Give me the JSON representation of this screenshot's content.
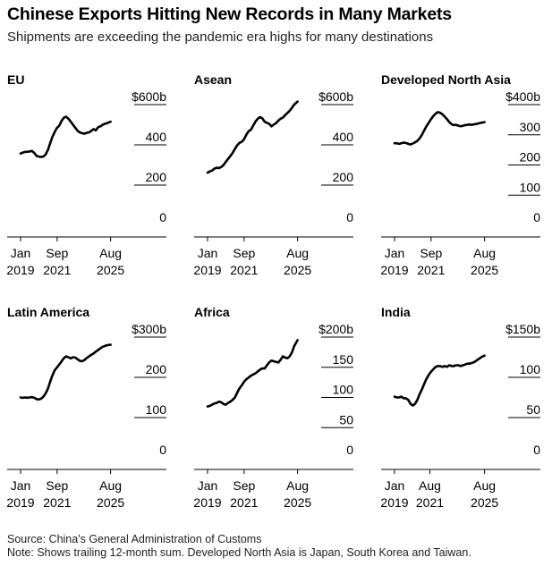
{
  "title": "Chinese Exports Hitting New Records in Many Markets",
  "subtitle": "Shipments are exceeding the pandemic era highs for many destinations",
  "footer": {
    "source": "Source: China's General Administration of Customs",
    "note": "Note: Shows trailing 12-month sum. Developed North Asia is Japan, South Korea and Taiwan."
  },
  "chart_data": [
    {
      "type": "line",
      "title": "EU",
      "unit": "b",
      "ylim": [
        0,
        600
      ],
      "yticks": [
        0,
        200,
        400,
        600
      ],
      "ytick_labels": [
        "0",
        "200",
        "400",
        "$600b"
      ],
      "xlim": [
        2019.0,
        2025.67
      ],
      "xticks": [
        {
          "x": 2019.0,
          "line1": "Jan",
          "line2": "2019"
        },
        {
          "x": 2021.67,
          "line1": "Sep",
          "line2": "2021"
        },
        {
          "x": 2025.58,
          "line1": "Aug",
          "line2": "2025"
        }
      ],
      "series": [
        {
          "x": [
            2019.0,
            2019.17,
            2019.33,
            2019.5,
            2019.67,
            2019.83,
            2020.0,
            2020.17,
            2020.33,
            2020.5,
            2020.67,
            2020.83,
            2021.0,
            2021.17,
            2021.33,
            2021.5,
            2021.67,
            2021.83,
            2022.0,
            2022.17,
            2022.33,
            2022.5,
            2022.67,
            2022.83,
            2023.0,
            2023.17,
            2023.33,
            2023.5,
            2023.67,
            2023.83,
            2024.0,
            2024.17,
            2024.33,
            2024.5,
            2024.67,
            2024.83,
            2025.0,
            2025.17,
            2025.33,
            2025.58
          ],
          "values": [
            357,
            362,
            365,
            366,
            367,
            370,
            360,
            345,
            342,
            340,
            342,
            352,
            375,
            410,
            440,
            465,
            485,
            495,
            520,
            535,
            540,
            530,
            515,
            500,
            485,
            470,
            462,
            458,
            455,
            460,
            462,
            470,
            478,
            472,
            488,
            492,
            500,
            505,
            508,
            515
          ]
        }
      ]
    },
    {
      "type": "line",
      "title": "Asean",
      "unit": "b",
      "ylim": [
        0,
        600
      ],
      "yticks": [
        0,
        200,
        400,
        600
      ],
      "ytick_labels": [
        "0",
        "200",
        "400",
        "$600b"
      ],
      "xlim": [
        2019.0,
        2025.67
      ],
      "xticks": [
        {
          "x": 2019.0,
          "line1": "Jan",
          "line2": "2019"
        },
        {
          "x": 2021.67,
          "line1": "Sep",
          "line2": "2021"
        },
        {
          "x": 2025.58,
          "line1": "Aug",
          "line2": "2025"
        }
      ],
      "series": [
        {
          "x": [
            2019.0,
            2019.17,
            2019.33,
            2019.5,
            2019.67,
            2019.83,
            2020.0,
            2020.17,
            2020.33,
            2020.5,
            2020.67,
            2020.83,
            2021.0,
            2021.17,
            2021.33,
            2021.5,
            2021.67,
            2021.83,
            2022.0,
            2022.17,
            2022.33,
            2022.5,
            2022.67,
            2022.83,
            2023.0,
            2023.17,
            2023.33,
            2023.5,
            2023.67,
            2023.83,
            2024.0,
            2024.17,
            2024.33,
            2024.5,
            2024.67,
            2024.83,
            2025.0,
            2025.17,
            2025.33,
            2025.58
          ],
          "values": [
            262,
            268,
            272,
            282,
            286,
            285,
            290,
            300,
            315,
            330,
            345,
            360,
            380,
            398,
            410,
            415,
            428,
            450,
            468,
            475,
            495,
            515,
            530,
            538,
            532,
            515,
            510,
            505,
            492,
            500,
            508,
            520,
            530,
            535,
            548,
            558,
            570,
            585,
            600,
            615
          ]
        }
      ]
    },
    {
      "type": "line",
      "title": "Developed North Asia",
      "unit": "b",
      "ylim": [
        0,
        400
      ],
      "yticks": [
        0,
        100,
        200,
        300,
        400
      ],
      "ytick_labels": [
        "0",
        "100",
        "200",
        "300",
        "$400b"
      ],
      "xlim": [
        2019.0,
        2025.67
      ],
      "xticks": [
        {
          "x": 2019.0,
          "line1": "Jan",
          "line2": "2019"
        },
        {
          "x": 2021.67,
          "line1": "Sep",
          "line2": "2021"
        },
        {
          "x": 2025.58,
          "line1": "Aug",
          "line2": "2025"
        }
      ],
      "series": [
        {
          "x": [
            2019.0,
            2019.17,
            2019.33,
            2019.5,
            2019.67,
            2019.83,
            2020.0,
            2020.17,
            2020.33,
            2020.5,
            2020.67,
            2020.83,
            2021.0,
            2021.17,
            2021.33,
            2021.5,
            2021.67,
            2021.83,
            2022.0,
            2022.17,
            2022.33,
            2022.5,
            2022.67,
            2022.83,
            2023.0,
            2023.17,
            2023.33,
            2023.5,
            2023.67,
            2023.83,
            2024.0,
            2024.17,
            2024.33,
            2024.5,
            2024.67,
            2024.83,
            2025.0,
            2025.17,
            2025.33,
            2025.58
          ],
          "values": [
            272,
            272,
            270,
            272,
            274,
            273,
            270,
            268,
            271,
            275,
            280,
            288,
            300,
            315,
            328,
            340,
            352,
            362,
            370,
            375,
            373,
            368,
            360,
            352,
            342,
            335,
            332,
            333,
            330,
            328,
            330,
            332,
            333,
            334,
            333,
            335,
            336,
            338,
            340,
            342
          ]
        }
      ]
    },
    {
      "type": "line",
      "title": "Latin America",
      "unit": "b",
      "ylim": [
        0,
        300
      ],
      "yticks": [
        0,
        100,
        200,
        300
      ],
      "ytick_labels": [
        "0",
        "100",
        "200",
        "$300b"
      ],
      "xlim": [
        2019.0,
        2025.67
      ],
      "xticks": [
        {
          "x": 2019.0,
          "line1": "Jan",
          "line2": "2019"
        },
        {
          "x": 2021.67,
          "line1": "Sep",
          "line2": "2021"
        },
        {
          "x": 2025.58,
          "line1": "Aug",
          "line2": "2025"
        }
      ],
      "series": [
        {
          "x": [
            2019.0,
            2019.17,
            2019.33,
            2019.5,
            2019.67,
            2019.83,
            2020.0,
            2020.17,
            2020.33,
            2020.5,
            2020.67,
            2020.83,
            2021.0,
            2021.17,
            2021.33,
            2021.5,
            2021.67,
            2021.83,
            2022.0,
            2022.17,
            2022.33,
            2022.5,
            2022.67,
            2022.83,
            2023.0,
            2023.17,
            2023.33,
            2023.5,
            2023.67,
            2023.83,
            2024.0,
            2024.17,
            2024.33,
            2024.5,
            2024.67,
            2024.83,
            2025.0,
            2025.17,
            2025.33,
            2025.58
          ],
          "values": [
            150,
            149,
            150,
            149,
            150,
            151,
            149,
            146,
            145,
            147,
            152,
            160,
            172,
            190,
            205,
            218,
            225,
            232,
            240,
            248,
            252,
            250,
            247,
            250,
            249,
            245,
            241,
            240,
            243,
            248,
            252,
            256,
            259,
            264,
            268,
            272,
            276,
            278,
            280,
            281
          ]
        }
      ]
    },
    {
      "type": "line",
      "title": "Africa",
      "unit": "b",
      "ylim": [
        0,
        200
      ],
      "yticks": [
        0,
        50,
        100,
        150,
        200
      ],
      "ytick_labels": [
        "0",
        "50",
        "100",
        "150",
        "$200b"
      ],
      "xlim": [
        2019.0,
        2025.67
      ],
      "xticks": [
        {
          "x": 2019.0,
          "line1": "Jan",
          "line2": "2019"
        },
        {
          "x": 2021.67,
          "line1": "Sep",
          "line2": "2021"
        },
        {
          "x": 2025.58,
          "line1": "Aug",
          "line2": "2025"
        }
      ],
      "series": [
        {
          "x": [
            2019.0,
            2019.17,
            2019.33,
            2019.5,
            2019.67,
            2019.83,
            2020.0,
            2020.17,
            2020.33,
            2020.5,
            2020.67,
            2020.83,
            2021.0,
            2021.17,
            2021.33,
            2021.5,
            2021.67,
            2021.83,
            2022.0,
            2022.17,
            2022.33,
            2022.5,
            2022.67,
            2022.83,
            2023.0,
            2023.17,
            2023.33,
            2023.5,
            2023.67,
            2023.83,
            2024.0,
            2024.17,
            2024.33,
            2024.5,
            2024.67,
            2024.83,
            2025.0,
            2025.17,
            2025.33,
            2025.58
          ],
          "values": [
            85,
            86,
            88,
            90,
            91,
            93,
            92,
            89,
            88,
            91,
            93,
            96,
            100,
            108,
            115,
            120,
            126,
            130,
            133,
            136,
            138,
            140,
            143,
            146,
            148,
            148,
            153,
            158,
            161,
            160,
            159,
            158,
            162,
            168,
            166,
            165,
            168,
            175,
            185,
            195
          ]
        }
      ]
    },
    {
      "type": "line",
      "title": "India",
      "unit": "b",
      "ylim": [
        0,
        150
      ],
      "yticks": [
        0,
        50,
        100,
        150
      ],
      "ytick_labels": [
        "0",
        "50",
        "100",
        "$150b"
      ],
      "xlim": [
        2019.0,
        2025.67
      ],
      "xticks": [
        {
          "x": 2019.0,
          "line1": "Jan",
          "line2": "2019"
        },
        {
          "x": 2021.58,
          "line1": "Aug",
          "line2": "2021"
        },
        {
          "x": 2025.58,
          "line1": "Aug",
          "line2": "2025"
        }
      ],
      "series": [
        {
          "x": [
            2019.0,
            2019.17,
            2019.33,
            2019.5,
            2019.67,
            2019.83,
            2020.0,
            2020.17,
            2020.33,
            2020.5,
            2020.67,
            2020.83,
            2021.0,
            2021.17,
            2021.33,
            2021.5,
            2021.67,
            2021.83,
            2022.0,
            2022.17,
            2022.33,
            2022.5,
            2022.67,
            2022.83,
            2023.0,
            2023.17,
            2023.33,
            2023.5,
            2023.67,
            2023.83,
            2024.0,
            2024.17,
            2024.33,
            2024.5,
            2024.67,
            2024.83,
            2025.0,
            2025.17,
            2025.33,
            2025.58
          ],
          "values": [
            76,
            75,
            75,
            76,
            74,
            74,
            72,
            67,
            65,
            67,
            72,
            79,
            85,
            92,
            98,
            103,
            107,
            110,
            113,
            114,
            114,
            113,
            114,
            113,
            115,
            114,
            114,
            115,
            115,
            114,
            115,
            116,
            117,
            117,
            118,
            119,
            121,
            123,
            125,
            127
          ]
        }
      ]
    }
  ]
}
